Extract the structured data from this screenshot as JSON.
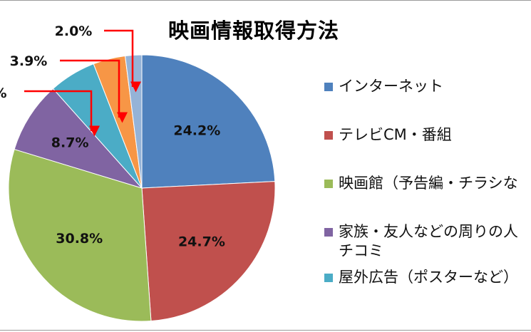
{
  "chart_data": {
    "type": "pie",
    "title": "映画情報取得方法",
    "slices": [
      {
        "label": "インターネット",
        "value": 24.2,
        "display": "24.2%",
        "color": "#4f81bd"
      },
      {
        "label": "テレビCM・番組",
        "value": 24.7,
        "display": "24.7%",
        "color": "#c0504d"
      },
      {
        "label": "映画館（予告編・チラシな",
        "value": 30.8,
        "display": "30.8%",
        "color": "#9bbb59"
      },
      {
        "label": "家族・友人などの周りの人\nチコミ",
        "value": 8.7,
        "display": "8.7%",
        "color": "#8064a2"
      },
      {
        "label": "屋外広告（ポスターなど）",
        "value": 5.7,
        "display": "%",
        "color": "#4bacc6"
      },
      {
        "label": "",
        "value": 3.9,
        "display": "3.9%",
        "color": "#f79646"
      },
      {
        "label": "",
        "value": 2.0,
        "display": "2.0%",
        "color": "#95b3d7"
      }
    ],
    "legend_position": "right"
  }
}
